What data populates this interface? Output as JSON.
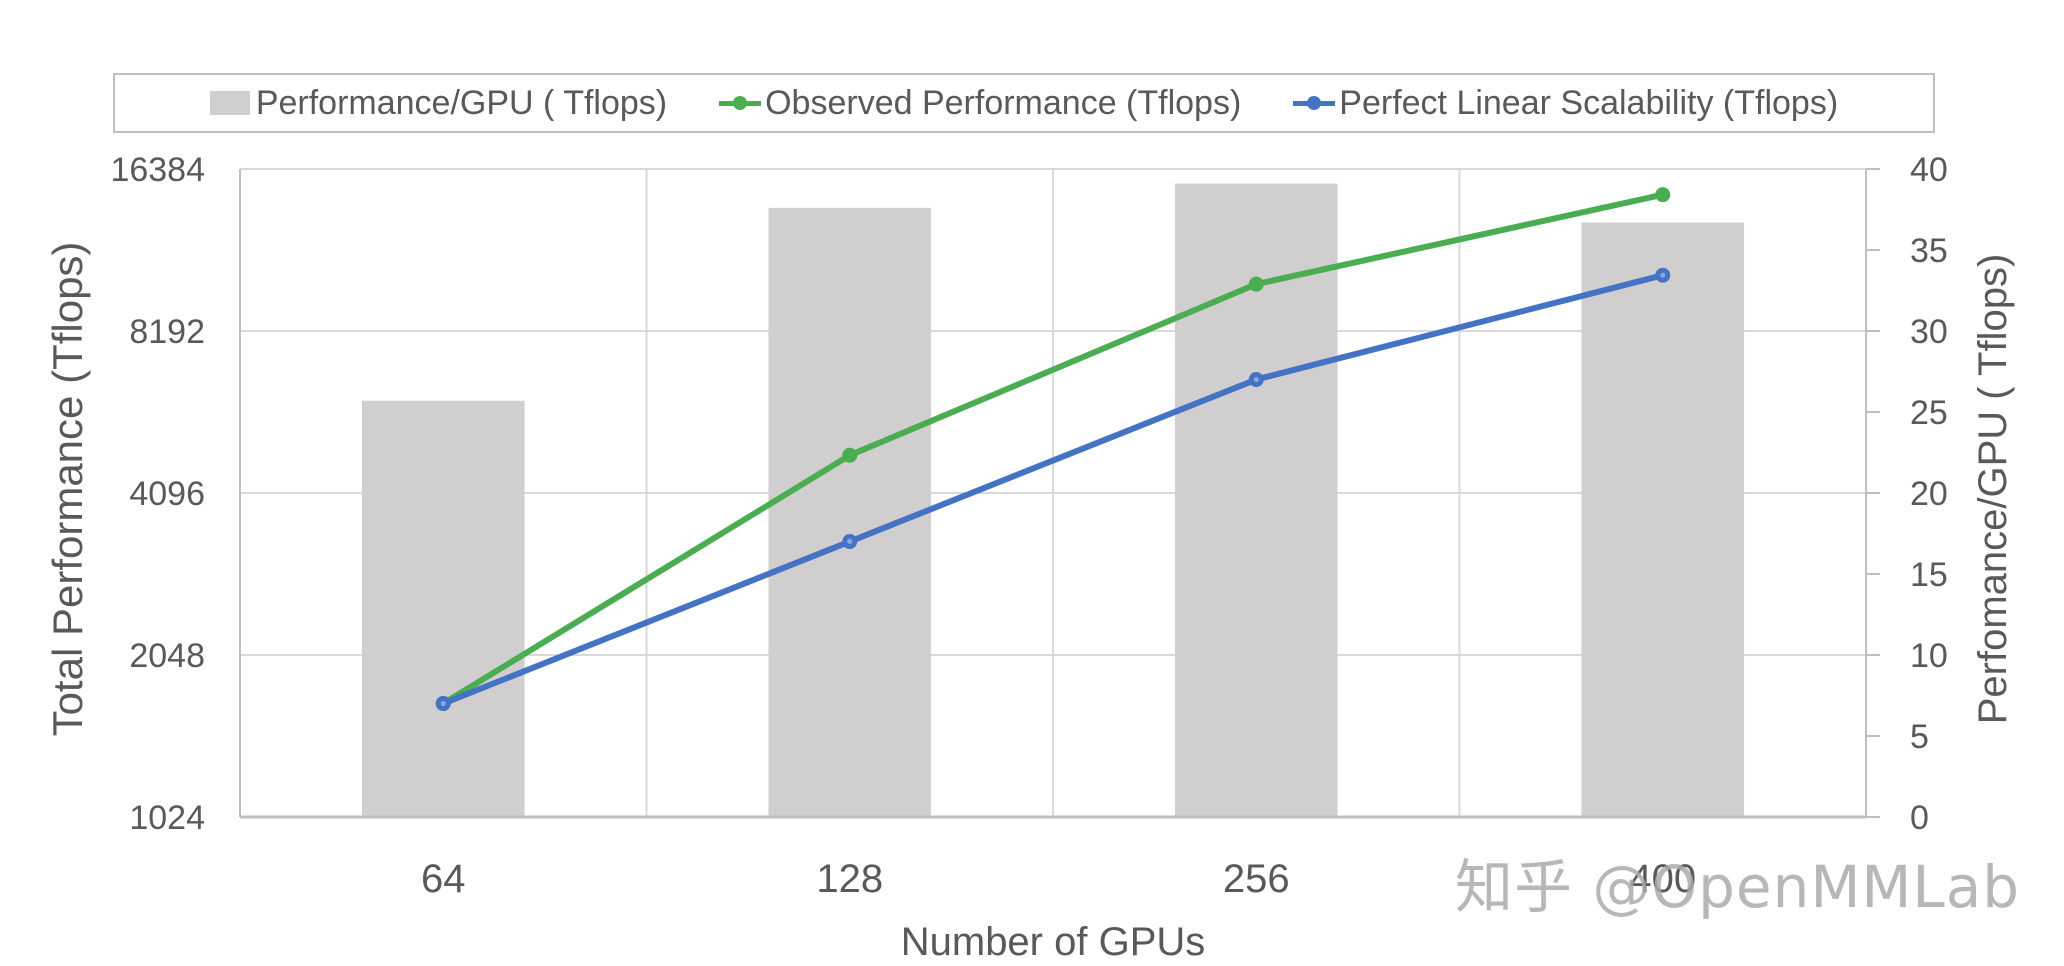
{
  "chart_data": {
    "type": "bar+line",
    "title": "",
    "xlabel": "Number of GPUs",
    "ylabel_left": "Total Performance (Tflops)",
    "ylabel_right": "Perfomance/GPU ( Tflops)",
    "categories": [
      "64",
      "128",
      "256",
      "400"
    ],
    "left_axis": {
      "scale": "log2",
      "ticks": [
        1024,
        2048,
        4096,
        8192,
        16384
      ],
      "range": [
        1024,
        16384
      ]
    },
    "right_axis": {
      "scale": "linear",
      "ticks": [
        0,
        5,
        10,
        15,
        20,
        25,
        30,
        35,
        40
      ],
      "range": [
        0,
        40
      ]
    },
    "grid": true,
    "legend_position": "top",
    "series": [
      {
        "name": "Performance/GPU ( Tflops)",
        "type": "bar",
        "axis": "right",
        "color": "#d0cece",
        "values": [
          25.7,
          37.6,
          39.1,
          36.7
        ]
      },
      {
        "name": "Observed Performance (Tflops)",
        "type": "line",
        "axis": "left",
        "color": "#4aad52",
        "values": [
          1664,
          4813,
          10010,
          14680
        ]
      },
      {
        "name": "Perfect Linear Scalability (Tflops)",
        "type": "line",
        "axis": "left",
        "color": "#4472c4",
        "values": [
          1664,
          3328,
          6656,
          10400
        ]
      }
    ]
  },
  "legend": {
    "items": [
      {
        "label": "Performance/GPU ( Tflops)",
        "kind": "bar",
        "color": "#d0cece"
      },
      {
        "label": "Observed Performance (Tflops)",
        "kind": "line",
        "color": "#4aad52"
      },
      {
        "label": "Perfect Linear Scalability (Tflops)",
        "kind": "line",
        "color": "#4472c4"
      }
    ]
  },
  "axes": {
    "left_ticks": [
      "16384",
      "8192",
      "4096",
      "2048",
      "1024"
    ],
    "right_ticks": [
      "40",
      "35",
      "30",
      "25",
      "20",
      "15",
      "10",
      "5",
      "0"
    ],
    "x_ticks": [
      "64",
      "128",
      "256",
      "400"
    ],
    "xlabel": "Number of GPUs",
    "ylabel_left": "Total Performance (Tflops)",
    "ylabel_right": "Perfomance/GPU ( Tflops)"
  },
  "watermark": "知乎 @OpenMMLab"
}
